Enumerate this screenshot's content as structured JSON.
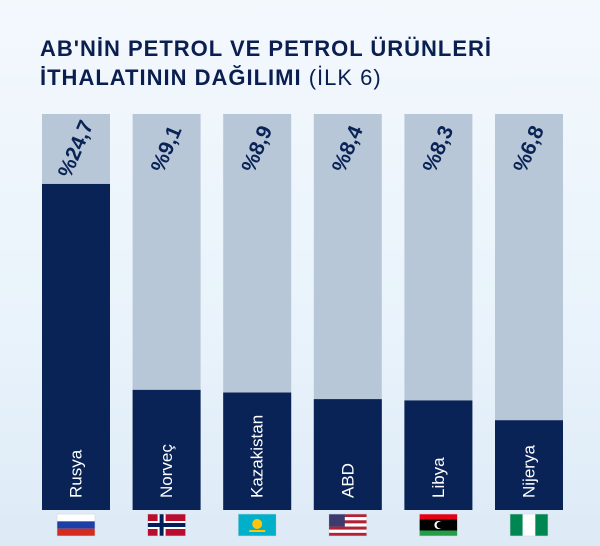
{
  "title": {
    "line1": "AB'NİN PETROL VE PETROL ÜRÜNLERİ",
    "line2_bold": "İTHALATININ DAĞILIMI",
    "line2_light": "(İLK 6)"
  },
  "colors": {
    "bar_bg": "#b8c7d7",
    "bar_fill": "#0a2356",
    "value_text": "#0a2356",
    "label_text": "#ffffff"
  },
  "chart_data": {
    "type": "bar",
    "categories": [
      "Rusya",
      "Norveç",
      "Kazakistan",
      "ABD",
      "Libya",
      "Nijerya"
    ],
    "value_labels": [
      "%24,7",
      "%9,1",
      "%8,9",
      "%8,4",
      "%8,3",
      "%6,8"
    ],
    "values": [
      24.7,
      9.1,
      8.9,
      8.4,
      8.3,
      6.8
    ],
    "ylim": [
      0,
      30
    ],
    "flags": [
      "flag-russia-icon",
      "flag-norway-icon",
      "flag-kazakhstan-icon",
      "flag-usa-icon",
      "flag-libya-icon",
      "flag-nigeria-icon"
    ]
  }
}
